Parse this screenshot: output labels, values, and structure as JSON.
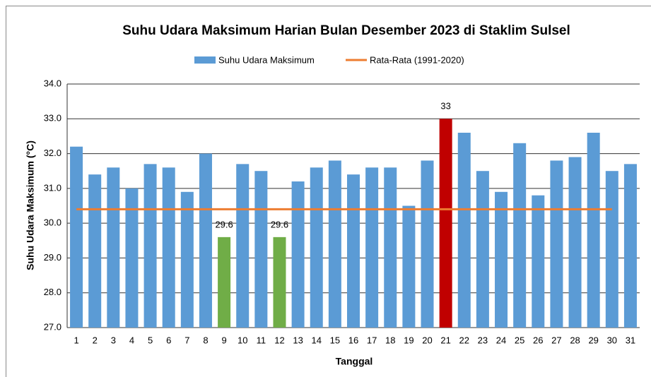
{
  "chart_data": {
    "type": "bar",
    "title": "Suhu Udara Maksimum Harian Bulan Desember 2023 di Staklim Sulsel",
    "x_label": "Tanggal",
    "y_label": "Suhu Udara Maksimum (°C)",
    "categories": [
      "1",
      "2",
      "3",
      "4",
      "5",
      "6",
      "7",
      "8",
      "9",
      "10",
      "11",
      "12",
      "13",
      "14",
      "15",
      "16",
      "17",
      "18",
      "19",
      "20",
      "21",
      "22",
      "23",
      "24",
      "25",
      "26",
      "27",
      "28",
      "29",
      "30",
      "31"
    ],
    "series": [
      {
        "name": "Suhu Udara Maksimum",
        "type": "bar",
        "color": "#5b9bd5",
        "values": [
          32.2,
          31.4,
          31.6,
          31.0,
          31.7,
          31.6,
          30.9,
          32.0,
          29.6,
          31.7,
          31.5,
          29.6,
          31.2,
          31.6,
          31.8,
          31.4,
          31.6,
          31.6,
          30.5,
          31.8,
          33,
          32.6,
          31.5,
          30.9,
          32.3,
          30.8,
          31.8,
          31.9,
          32.6,
          31.5,
          31.7
        ],
        "bar_colors": [
          "#5b9bd5",
          "#5b9bd5",
          "#5b9bd5",
          "#5b9bd5",
          "#5b9bd5",
          "#5b9bd5",
          "#5b9bd5",
          "#5b9bd5",
          "#70ad47",
          "#5b9bd5",
          "#5b9bd5",
          "#70ad47",
          "#5b9bd5",
          "#5b9bd5",
          "#5b9bd5",
          "#5b9bd5",
          "#5b9bd5",
          "#5b9bd5",
          "#5b9bd5",
          "#5b9bd5",
          "#c00000",
          "#5b9bd5",
          "#5b9bd5",
          "#5b9bd5",
          "#5b9bd5",
          "#5b9bd5",
          "#5b9bd5",
          "#5b9bd5",
          "#5b9bd5",
          "#5b9bd5",
          "#5b9bd5"
        ],
        "value_labels": [
          null,
          null,
          null,
          null,
          null,
          null,
          null,
          null,
          "29.6",
          null,
          null,
          "29.6",
          null,
          null,
          null,
          null,
          null,
          null,
          null,
          null,
          "33",
          null,
          null,
          null,
          null,
          null,
          null,
          null,
          null,
          null,
          null
        ]
      },
      {
        "name": "Rata-Rata (1991-2020)",
        "type": "line",
        "color": "#ed7d31",
        "values": [
          30.4,
          30.4,
          30.4,
          30.4,
          30.4,
          30.4,
          30.4,
          30.4,
          30.4,
          30.4,
          30.4,
          30.4,
          30.4,
          30.4,
          30.4,
          30.4,
          30.4,
          30.4,
          30.4,
          30.4,
          30.4,
          30.4,
          30.4,
          30.4,
          30.4,
          30.4,
          30.4,
          30.4,
          30.4,
          30.4,
          null
        ]
      }
    ],
    "ylim": [
      27,
      34
    ],
    "yticks": [
      {
        "value": 27,
        "label": "27.0"
      },
      {
        "value": 28,
        "label": "28.0"
      },
      {
        "value": 29,
        "label": "29.0"
      },
      {
        "value": 30,
        "label": "30.0"
      },
      {
        "value": 31,
        "label": "31.0"
      },
      {
        "value": 32,
        "label": "32.0"
      },
      {
        "value": 33,
        "label": "33.0"
      },
      {
        "value": 34,
        "label": "34.0"
      }
    ],
    "grid": true,
    "legend": "top"
  }
}
